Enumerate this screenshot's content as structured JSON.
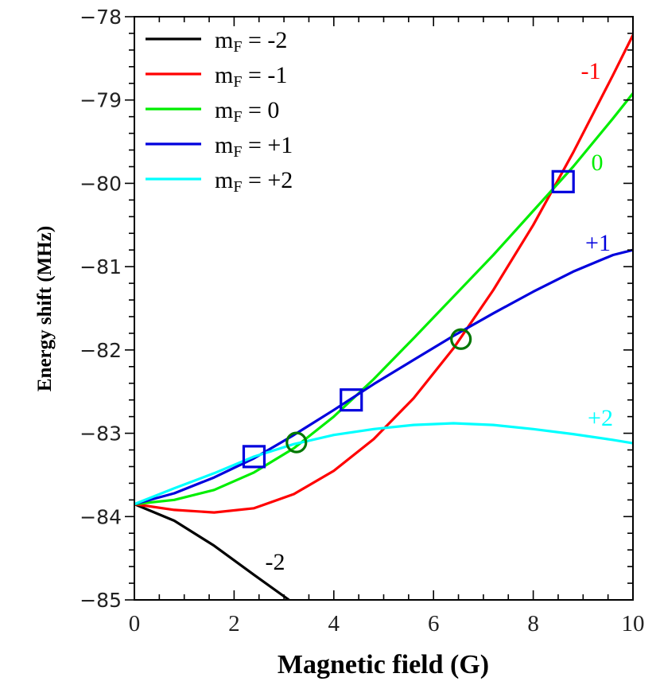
{
  "chart_data": {
    "type": "line",
    "xlabel": "Magnetic field (G)",
    "ylabel": "Energy shift (MHz)",
    "xlim": [
      0,
      10
    ],
    "ylim": [
      -85,
      -78
    ],
    "xticks": [
      "0",
      "2",
      "4",
      "6",
      "8",
      "10"
    ],
    "yticks": [
      "−85",
      "−84",
      "−83",
      "−82",
      "−81",
      "−80",
      "−79",
      "−78"
    ],
    "grid": false,
    "legend_position": "top-left",
    "series": [
      {
        "name": "m_F = -2",
        "legend_main": "m",
        "legend_sub": "F",
        "legend_rest": " = -2",
        "label": "-2",
        "color": "#000000",
        "x": [
          0,
          0.8,
          1.6,
          2.4,
          3.1
        ],
        "y": [
          -83.85,
          -84.05,
          -84.35,
          -84.7,
          -85.0
        ]
      },
      {
        "name": "m_F = -1",
        "legend_main": "m",
        "legend_sub": "F",
        "legend_rest": " = -1",
        "label": "-1",
        "color": "#ff0000",
        "x": [
          0,
          0.8,
          1.6,
          2.4,
          3.2,
          4.0,
          4.8,
          5.6,
          6.4,
          7.2,
          8.0,
          8.8,
          9.6,
          10.0
        ],
        "y": [
          -83.85,
          -83.92,
          -83.95,
          -83.9,
          -83.73,
          -83.45,
          -83.07,
          -82.58,
          -81.98,
          -81.28,
          -80.5,
          -79.63,
          -78.7,
          -78.22
        ]
      },
      {
        "name": "m_F = 0",
        "legend_main": "m",
        "legend_sub": "F",
        "legend_rest": " = 0",
        "label": "0",
        "color": "#00ee00",
        "x": [
          0,
          0.8,
          1.6,
          2.4,
          3.2,
          4.0,
          4.8,
          5.6,
          6.4,
          7.2,
          8.0,
          8.8,
          9.6,
          10.0
        ],
        "y": [
          -83.85,
          -83.8,
          -83.68,
          -83.47,
          -83.18,
          -82.8,
          -82.35,
          -81.86,
          -81.36,
          -80.86,
          -80.33,
          -79.8,
          -79.22,
          -78.92
        ]
      },
      {
        "name": "m_F = +1",
        "legend_main": "m",
        "legend_sub": "F",
        "legend_rest": " = +1",
        "label": "+1",
        "color": "#0000dd",
        "x": [
          0,
          0.8,
          1.6,
          2.4,
          3.2,
          4.0,
          4.8,
          5.6,
          6.4,
          7.2,
          8.0,
          8.8,
          9.6,
          10.0
        ],
        "y": [
          -83.85,
          -83.72,
          -83.53,
          -83.3,
          -83.02,
          -82.72,
          -82.41,
          -82.12,
          -81.83,
          -81.56,
          -81.3,
          -81.06,
          -80.86,
          -80.8
        ]
      },
      {
        "name": "m_F = +2",
        "legend_main": "m",
        "legend_sub": "F",
        "legend_rest": " = +2",
        "label": "+2",
        "color": "#00ffff",
        "x": [
          0,
          0.8,
          1.6,
          2.4,
          3.2,
          4.0,
          4.8,
          5.6,
          6.4,
          7.2,
          8.0,
          8.8,
          9.6,
          10.0
        ],
        "y": [
          -83.85,
          -83.66,
          -83.48,
          -83.28,
          -83.13,
          -83.02,
          -82.95,
          -82.9,
          -82.88,
          -82.9,
          -82.95,
          -83.01,
          -83.08,
          -83.12
        ]
      }
    ],
    "markers": [
      {
        "shape": "square",
        "color": "#0000dd",
        "x": 2.4,
        "y": -83.28
      },
      {
        "shape": "square",
        "color": "#0000dd",
        "x": 4.35,
        "y": -82.6
      },
      {
        "shape": "square",
        "color": "#0000dd",
        "x": 8.6,
        "y": -79.98
      },
      {
        "shape": "circle",
        "color": "#007700",
        "x": 3.25,
        "y": -83.11
      },
      {
        "shape": "circle",
        "color": "#007700",
        "x": 6.55,
        "y": -81.87
      }
    ]
  }
}
